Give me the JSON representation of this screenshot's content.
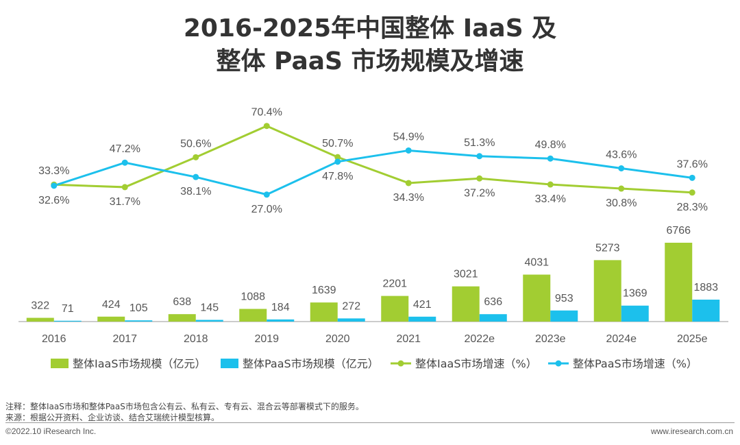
{
  "title_line1": "2016-2025年中国整体 IaaS 及",
  "title_line2": "整体 PaaS 市场规模及增速",
  "footer": {
    "note": "注释：整体IaaS市场和整体PaaS市场包含公有云、私有云、专有云、混合云等部署模式下的服务。",
    "source": "来源：根据公开资料、企业访谈、结合艾瑞统计模型核算。",
    "copyright": "©2022.10 iResearch Inc.",
    "website": "www.iresearch.com.cn"
  },
  "colors": {
    "iaas": "#a2cd32",
    "paas": "#1cc0ec",
    "label": "#555555",
    "axis": "#999999"
  },
  "chart_data": {
    "type": "bar+line",
    "categories": [
      "2016",
      "2017",
      "2018",
      "2019",
      "2020",
      "2021",
      "2022e",
      "2023e",
      "2024e",
      "2025e"
    ],
    "bar_series": [
      {
        "name": "整体IaaS市场规模（亿元）",
        "values": [
          322,
          424,
          638,
          1088,
          1639,
          2201,
          3021,
          4031,
          5273,
          6766
        ]
      },
      {
        "name": "整体PaaS市场规模（亿元）",
        "values": [
          71,
          105,
          145,
          184,
          272,
          421,
          636,
          953,
          1369,
          1883
        ]
      }
    ],
    "line_series": [
      {
        "name": "整体IaaS市场增速（%）",
        "values": [
          33.3,
          31.7,
          50.6,
          70.4,
          50.7,
          34.3,
          37.2,
          33.4,
          30.8,
          28.3
        ],
        "labels": [
          "33.3%",
          "31.7%",
          "50.6%",
          "70.4%",
          "50.7%",
          "34.3%",
          "37.2%",
          "33.4%",
          "30.8%",
          "28.3%"
        ]
      },
      {
        "name": "整体PaaS市场增速（%）",
        "values": [
          32.6,
          47.2,
          38.1,
          27.0,
          47.8,
          54.9,
          51.3,
          49.8,
          43.6,
          37.6
        ],
        "labels": [
          "32.6%",
          "47.2%",
          "38.1%",
          "27.0%",
          "47.8%",
          "54.9%",
          "51.3%",
          "49.8%",
          "43.6%",
          "37.6%"
        ]
      }
    ]
  }
}
